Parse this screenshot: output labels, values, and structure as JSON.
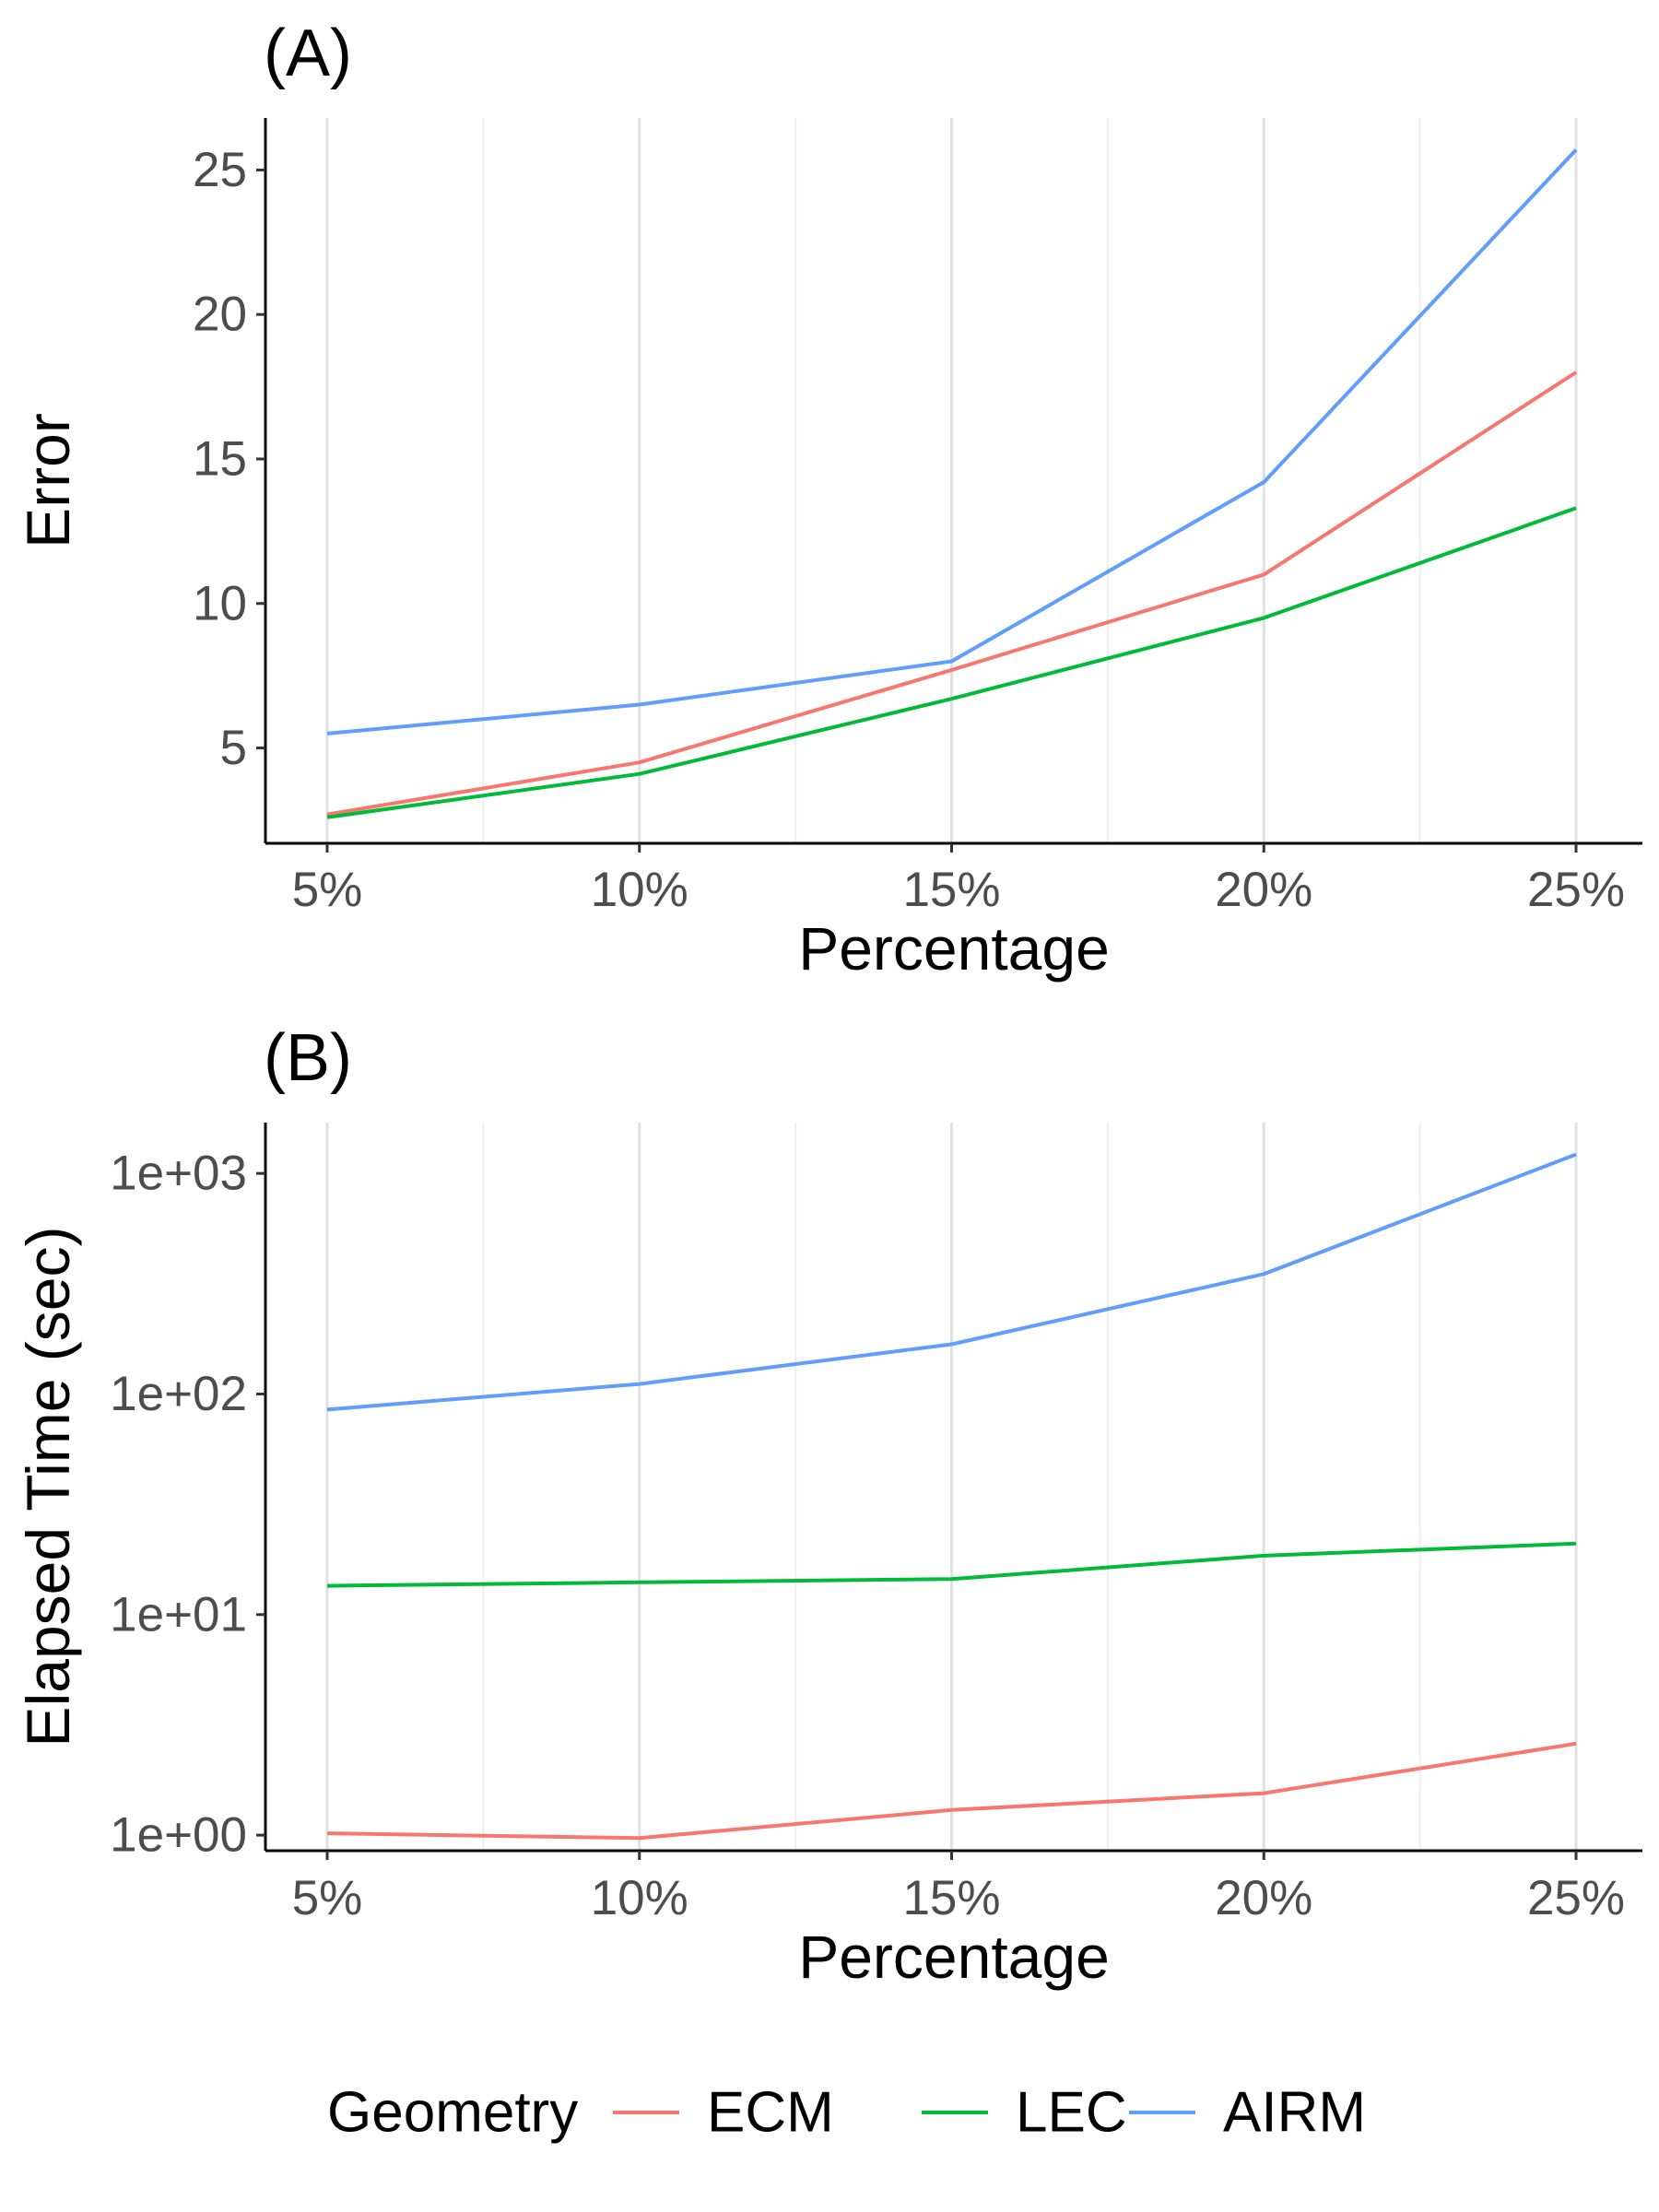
{
  "chart_data": [
    {
      "panel_label": "(A)",
      "type": "line",
      "categories": [
        "5%",
        "10%",
        "15%",
        "20%",
        "25%"
      ],
      "xlabel": "Percentage",
      "ylabel": "Error",
      "yscale": "linear",
      "ylim": [
        1.7,
        26.8
      ],
      "yticks": [
        5,
        10,
        15,
        20,
        25
      ],
      "ytick_labels": [
        "5",
        "10",
        "15",
        "20",
        "25"
      ],
      "series": [
        {
          "name": "ECM",
          "color": "#F8766D",
          "values": [
            2.7,
            4.5,
            7.7,
            11.0,
            18.0
          ]
        },
        {
          "name": "LEC",
          "color": "#00BA38",
          "values": [
            2.6,
            4.1,
            6.7,
            9.5,
            13.3
          ]
        },
        {
          "name": "AIRM",
          "color": "#619CFF",
          "values": [
            5.5,
            6.5,
            8.0,
            14.2,
            25.7
          ]
        }
      ]
    },
    {
      "panel_label": "(B)",
      "type": "line",
      "categories": [
        "5%",
        "10%",
        "15%",
        "20%",
        "25%"
      ],
      "xlabel": "Percentage",
      "ylabel": "Elapsed Time (sec)",
      "yscale": "log10",
      "ylim": [
        0.85,
        1700
      ],
      "yticks": [
        1,
        10,
        100,
        1000
      ],
      "ytick_labels": [
        "1e+00",
        "1e+01",
        "1e+02",
        "1e+03"
      ],
      "series": [
        {
          "name": "ECM",
          "color": "#F8766D",
          "values": [
            1.02,
            0.97,
            1.3,
            1.55,
            2.6
          ]
        },
        {
          "name": "LEC",
          "color": "#00BA38",
          "values": [
            13.5,
            14.0,
            14.5,
            18.5,
            21.0
          ]
        },
        {
          "name": "AIRM",
          "color": "#619CFF",
          "values": [
            85,
            111,
            168,
            350,
            1220
          ]
        }
      ]
    }
  ],
  "legend": {
    "title": "Geometry",
    "entries": [
      {
        "name": "ECM",
        "color": "#F8766D"
      },
      {
        "name": "LEC",
        "color": "#00BA38"
      },
      {
        "name": "AIRM",
        "color": "#619CFF"
      }
    ]
  }
}
